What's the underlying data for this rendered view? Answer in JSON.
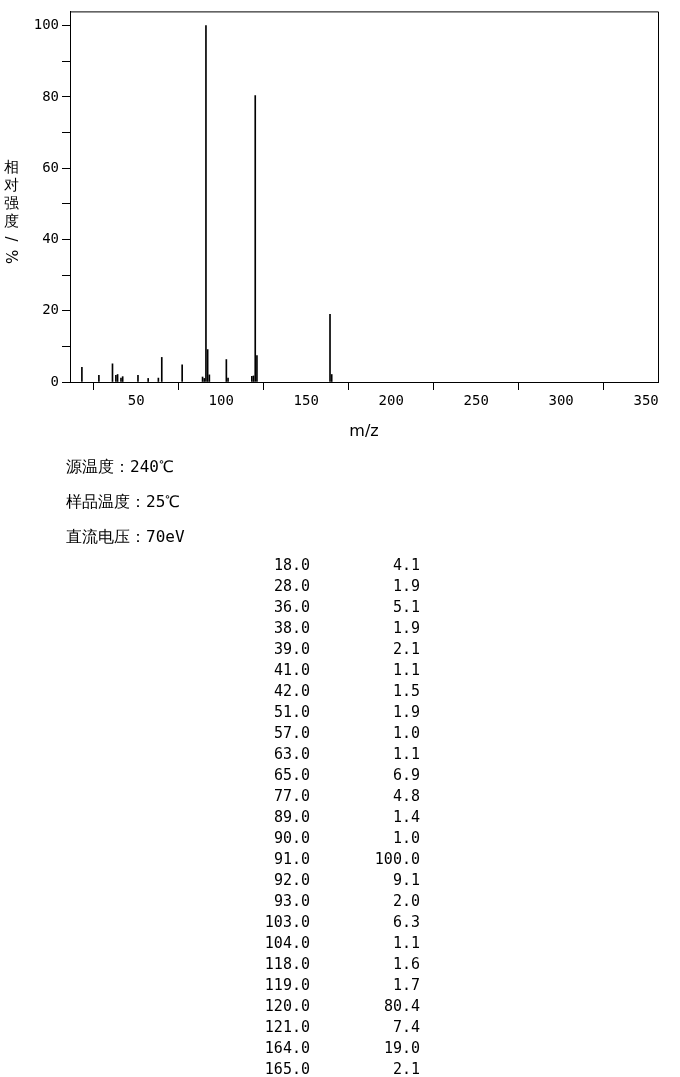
{
  "chart_data": [
    {
      "type": "bar",
      "xlabel": "m/z",
      "ylabel": "相对强度/%",
      "x": [
        18,
        28,
        36,
        38,
        39,
        41,
        42,
        51,
        57,
        63,
        65,
        77,
        89,
        90,
        91,
        92,
        93,
        103,
        104,
        118,
        119,
        120,
        121,
        164,
        165
      ],
      "values": [
        4.1,
        1.9,
        5.1,
        1.9,
        2.1,
        1.1,
        1.5,
        1.9,
        1.0,
        1.1,
        6.9,
        4.8,
        1.4,
        1.0,
        100.0,
        9.1,
        2.0,
        6.3,
        1.1,
        1.6,
        1.7,
        80.4,
        7.4,
        19.0,
        2.1
      ],
      "color": "#000000",
      "xlim": [
        11,
        357
      ],
      "xticks": [
        50,
        100,
        150,
        200,
        250,
        300,
        350
      ],
      "ylim": [
        0,
        104
      ],
      "yticks": [
        0,
        {
          "value": 10,
          "label": null
        },
        20,
        {
          "value": 30,
          "label": null
        },
        40,
        {
          "value": 50,
          "label": null
        },
        60,
        {
          "value": 70,
          "label": null
        },
        80,
        {
          "value": 90,
          "label": null
        },
        100
      ],
      "grid": false,
      "legend": false,
      "annotations": [
        "源温度：240℃",
        "样品温度：25℃",
        "直流电压：70eV"
      ]
    },
    {
      "type": "other",
      "categories": [
        "18.0",
        "28.0",
        "36.0",
        "38.0",
        "39.0",
        "41.0",
        "42.0",
        "51.0",
        "57.0",
        "63.0",
        "65.0",
        "77.0",
        "89.0",
        "90.0",
        "91.0",
        "92.0",
        "93.0",
        "103.0",
        "104.0",
        "118.0",
        "119.0",
        "120.0",
        "121.0",
        "164.0",
        "165.0"
      ],
      "value_labels": [
        "4.1",
        "1.9",
        "5.1",
        "1.9",
        "2.1",
        "1.1",
        "1.5",
        "1.9",
        "1.0",
        "1.1",
        "6.9",
        "4.8",
        "1.4",
        "1.0",
        "100.0",
        "9.1",
        "2.0",
        "6.3",
        "1.1",
        "1.6",
        "1.7",
        "80.4",
        "7.4",
        "19.0",
        "2.1"
      ],
      "data_labels": true
    }
  ]
}
